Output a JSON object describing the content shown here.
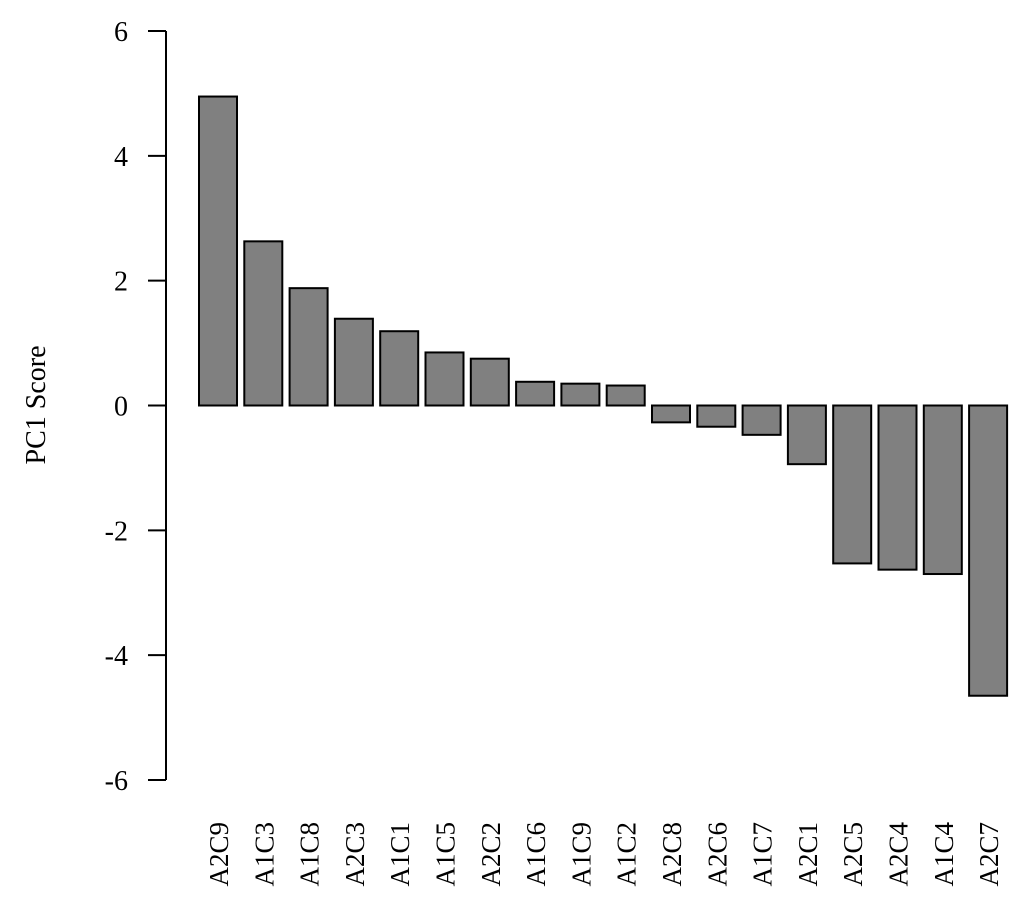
{
  "chart_data": {
    "type": "bar",
    "title": "",
    "xlabel": "",
    "ylabel": "PC1 Score",
    "ylim": [
      -6,
      6
    ],
    "yticks": [
      6,
      4,
      2,
      0,
      -2,
      -4,
      -6
    ],
    "ytick_labels": [
      "6",
      "4",
      "2",
      "0",
      "-2",
      "-4",
      "-6"
    ],
    "categories": [
      "A2C9",
      "A1C3",
      "A1C8",
      "A2C3",
      "A1C1",
      "A1C5",
      "A2C2",
      "A1C6",
      "A1C9",
      "A1C2",
      "A2C8",
      "A2C6",
      "A1C7",
      "A2C1",
      "A2C5",
      "A2C4",
      "A1C4",
      "A2C7"
    ],
    "values": [
      4.95,
      2.63,
      1.88,
      1.39,
      1.19,
      0.85,
      0.75,
      0.38,
      0.35,
      0.32,
      -0.27,
      -0.34,
      -0.47,
      -0.94,
      -2.53,
      -2.63,
      -2.7,
      -4.65
    ],
    "bar_color": "#808080",
    "edge_color": "#000000",
    "grid": false,
    "legend": "none"
  }
}
